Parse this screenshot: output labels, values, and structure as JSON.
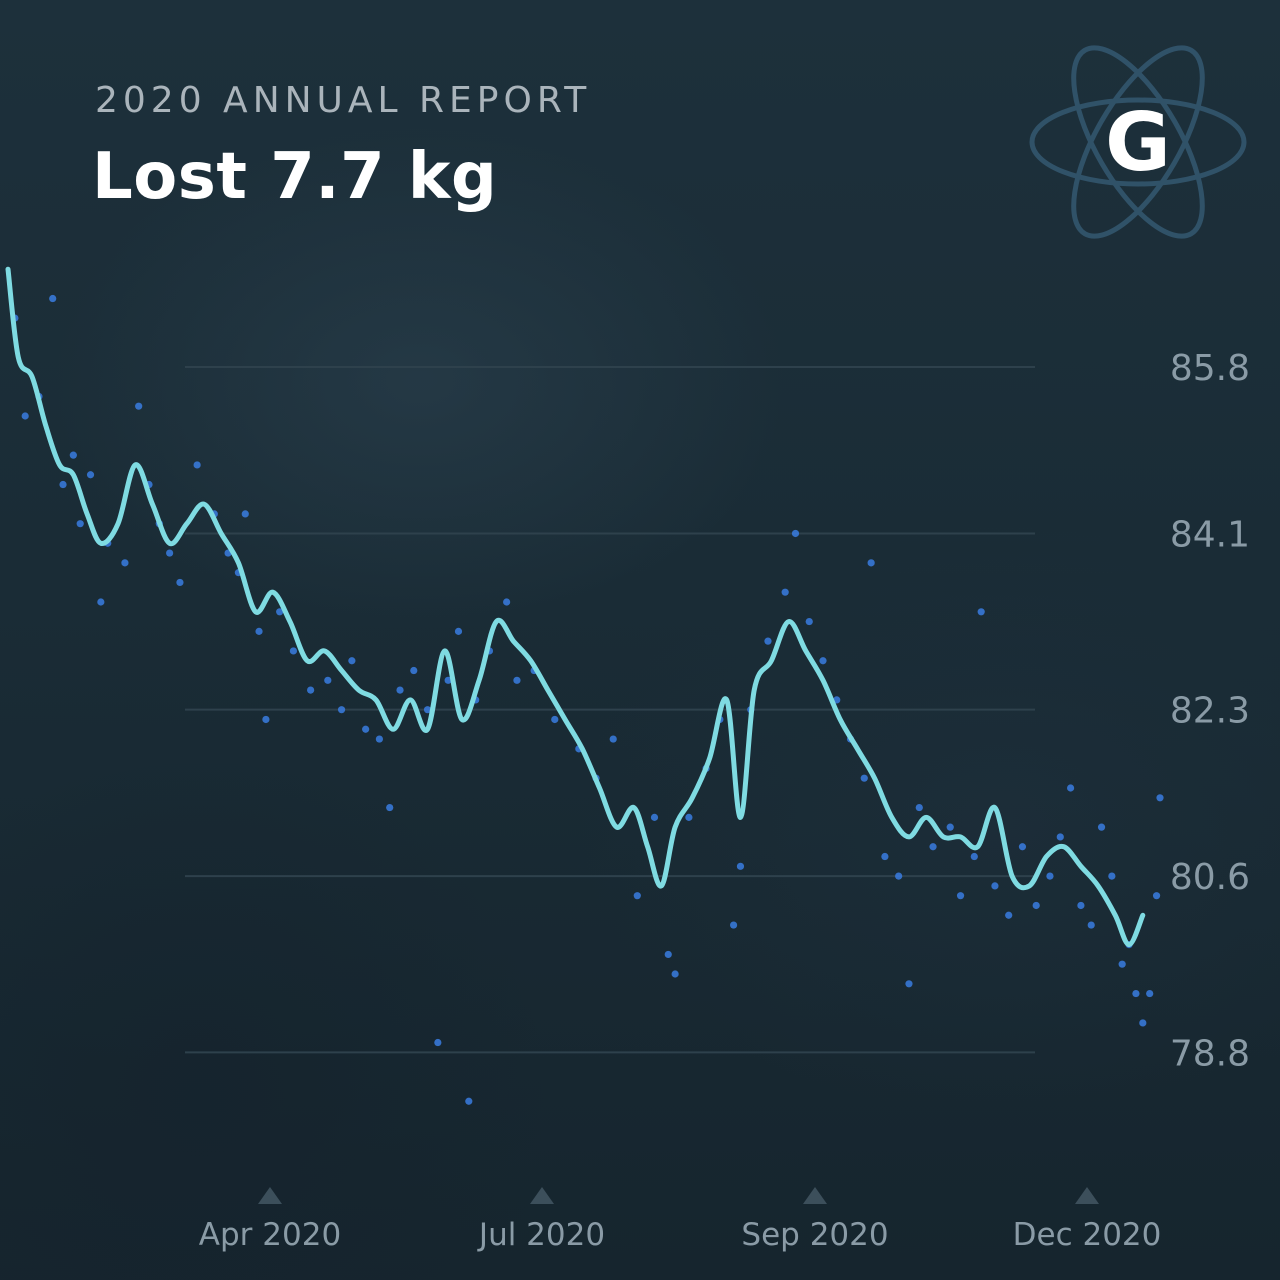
{
  "header": {
    "report_label": "2020 ANNUAL REPORT",
    "headline": "Lost 7.7 kg"
  },
  "logo": {
    "letter": "G",
    "icon": "atom-icon"
  },
  "colors": {
    "line": "#7fdbe2",
    "dots": "#3a7de0",
    "grid": "#2e414c",
    "tick_text": "#8a9ba6",
    "marker": "#3c4f5b"
  },
  "chart_data": {
    "type": "line",
    "y_axis": {
      "ticks": [
        "85.8",
        "84.1",
        "82.3",
        "80.6",
        "78.8"
      ],
      "ylim": [
        77.7,
        87.2
      ]
    },
    "x_axis": {
      "ticks": [
        "Apr 2020",
        "Jul 2020",
        "Sep 2020",
        "Dec 2020"
      ]
    },
    "grid": true,
    "series": [
      {
        "style": "line",
        "points": [
          [
            "2020-01-01",
            86.8
          ],
          [
            "2020-01-04",
            85.9
          ],
          [
            "2020-01-08",
            85.7
          ],
          [
            "2020-01-12",
            85.2
          ],
          [
            "2020-01-16",
            84.8
          ],
          [
            "2020-01-20",
            84.7
          ],
          [
            "2020-01-24",
            84.3
          ],
          [
            "2020-01-28",
            84.0
          ],
          [
            "2020-02-02",
            84.2
          ],
          [
            "2020-02-07",
            84.8
          ],
          [
            "2020-02-12",
            84.4
          ],
          [
            "2020-02-17",
            84.0
          ],
          [
            "2020-02-22",
            84.2
          ],
          [
            "2020-02-27",
            84.4
          ],
          [
            "2020-03-03",
            84.1
          ],
          [
            "2020-03-08",
            83.8
          ],
          [
            "2020-03-13",
            83.3
          ],
          [
            "2020-03-18",
            83.5
          ],
          [
            "2020-03-23",
            83.2
          ],
          [
            "2020-03-28",
            82.8
          ],
          [
            "2020-04-02",
            82.9
          ],
          [
            "2020-04-07",
            82.7
          ],
          [
            "2020-04-12",
            82.5
          ],
          [
            "2020-04-17",
            82.4
          ],
          [
            "2020-04-22",
            82.1
          ],
          [
            "2020-04-27",
            82.4
          ],
          [
            "2020-05-02",
            82.1
          ],
          [
            "2020-05-07",
            82.9
          ],
          [
            "2020-05-12",
            82.2
          ],
          [
            "2020-05-17",
            82.6
          ],
          [
            "2020-05-22",
            83.2
          ],
          [
            "2020-05-27",
            83.0
          ],
          [
            "2020-06-01",
            82.8
          ],
          [
            "2020-06-06",
            82.5
          ],
          [
            "2020-06-11",
            82.2
          ],
          [
            "2020-06-16",
            81.9
          ],
          [
            "2020-06-21",
            81.5
          ],
          [
            "2020-06-26",
            81.1
          ],
          [
            "2020-07-01",
            81.3
          ],
          [
            "2020-07-05",
            80.9
          ],
          [
            "2020-07-09",
            80.5
          ],
          [
            "2020-07-13",
            81.1
          ],
          [
            "2020-07-18",
            81.4
          ],
          [
            "2020-07-23",
            81.8
          ],
          [
            "2020-07-28",
            82.4
          ],
          [
            "2020-08-01",
            81.2
          ],
          [
            "2020-08-05",
            82.5
          ],
          [
            "2020-08-10",
            82.8
          ],
          [
            "2020-08-15",
            83.2
          ],
          [
            "2020-08-20",
            82.9
          ],
          [
            "2020-08-25",
            82.6
          ],
          [
            "2020-08-30",
            82.2
          ],
          [
            "2020-09-04",
            81.9
          ],
          [
            "2020-09-09",
            81.6
          ],
          [
            "2020-09-14",
            81.2
          ],
          [
            "2020-09-19",
            81.0
          ],
          [
            "2020-09-24",
            81.2
          ],
          [
            "2020-09-29",
            81.0
          ],
          [
            "2020-10-04",
            81.0
          ],
          [
            "2020-10-09",
            80.9
          ],
          [
            "2020-10-14",
            81.3
          ],
          [
            "2020-10-19",
            80.6
          ],
          [
            "2020-10-24",
            80.5
          ],
          [
            "2020-10-29",
            80.8
          ],
          [
            "2020-11-03",
            80.9
          ],
          [
            "2020-11-08",
            80.7
          ],
          [
            "2020-11-13",
            80.5
          ],
          [
            "2020-11-18",
            80.2
          ],
          [
            "2020-11-22",
            79.9
          ],
          [
            "2020-11-26",
            80.2
          ]
        ]
      },
      {
        "style": "scatter",
        "points": [
          [
            "2020-01-03",
            86.3
          ],
          [
            "2020-01-06",
            85.3
          ],
          [
            "2020-01-10",
            85.5
          ],
          [
            "2020-01-14",
            86.5
          ],
          [
            "2020-01-17",
            84.6
          ],
          [
            "2020-01-20",
            84.9
          ],
          [
            "2020-01-22",
            84.2
          ],
          [
            "2020-01-25",
            84.7
          ],
          [
            "2020-01-28",
            83.4
          ],
          [
            "2020-01-30",
            84.0
          ],
          [
            "2020-02-04",
            83.8
          ],
          [
            "2020-02-08",
            85.4
          ],
          [
            "2020-02-11",
            84.6
          ],
          [
            "2020-02-14",
            84.2
          ],
          [
            "2020-02-17",
            83.9
          ],
          [
            "2020-02-20",
            83.6
          ],
          [
            "2020-02-25",
            84.8
          ],
          [
            "2020-03-01",
            84.3
          ],
          [
            "2020-03-05",
            83.9
          ],
          [
            "2020-03-08",
            83.7
          ],
          [
            "2020-03-10",
            84.3
          ],
          [
            "2020-03-14",
            83.1
          ],
          [
            "2020-03-16",
            82.2
          ],
          [
            "2020-03-20",
            83.3
          ],
          [
            "2020-03-24",
            82.9
          ],
          [
            "2020-03-29",
            82.5
          ],
          [
            "2020-04-03",
            82.6
          ],
          [
            "2020-04-07",
            82.3
          ],
          [
            "2020-04-10",
            82.8
          ],
          [
            "2020-04-14",
            82.1
          ],
          [
            "2020-04-18",
            82.0
          ],
          [
            "2020-04-21",
            81.3
          ],
          [
            "2020-04-24",
            82.5
          ],
          [
            "2020-04-28",
            82.7
          ],
          [
            "2020-05-02",
            82.3
          ],
          [
            "2020-05-05",
            78.9
          ],
          [
            "2020-05-08",
            82.6
          ],
          [
            "2020-05-11",
            83.1
          ],
          [
            "2020-05-14",
            78.3
          ],
          [
            "2020-05-16",
            82.4
          ],
          [
            "2020-05-20",
            82.9
          ],
          [
            "2020-05-25",
            83.4
          ],
          [
            "2020-05-28",
            82.6
          ],
          [
            "2020-06-02",
            82.7
          ],
          [
            "2020-06-08",
            82.2
          ],
          [
            "2020-06-15",
            81.9
          ],
          [
            "2020-06-20",
            81.6
          ],
          [
            "2020-06-25",
            82.0
          ],
          [
            "2020-07-02",
            80.4
          ],
          [
            "2020-07-07",
            81.2
          ],
          [
            "2020-07-11",
            79.8
          ],
          [
            "2020-07-13",
            79.6
          ],
          [
            "2020-07-17",
            81.2
          ],
          [
            "2020-07-22",
            81.7
          ],
          [
            "2020-07-26",
            82.2
          ],
          [
            "2020-07-30",
            80.1
          ],
          [
            "2020-08-01",
            80.7
          ],
          [
            "2020-08-04",
            82.3
          ],
          [
            "2020-08-09",
            83.0
          ],
          [
            "2020-08-14",
            83.5
          ],
          [
            "2020-08-17",
            84.1
          ],
          [
            "2020-08-21",
            83.2
          ],
          [
            "2020-08-25",
            82.8
          ],
          [
            "2020-08-29",
            82.4
          ],
          [
            "2020-09-02",
            82.0
          ],
          [
            "2020-09-06",
            81.6
          ],
          [
            "2020-09-08",
            83.8
          ],
          [
            "2020-09-12",
            80.8
          ],
          [
            "2020-09-16",
            80.6
          ],
          [
            "2020-09-19",
            79.5
          ],
          [
            "2020-09-22",
            81.3
          ],
          [
            "2020-09-26",
            80.9
          ],
          [
            "2020-10-01",
            81.1
          ],
          [
            "2020-10-04",
            80.4
          ],
          [
            "2020-10-08",
            80.8
          ],
          [
            "2020-10-10",
            83.3
          ],
          [
            "2020-10-14",
            80.5
          ],
          [
            "2020-10-18",
            80.2
          ],
          [
            "2020-10-22",
            80.9
          ],
          [
            "2020-10-26",
            80.3
          ],
          [
            "2020-10-30",
            80.6
          ],
          [
            "2020-11-02",
            81.0
          ],
          [
            "2020-11-05",
            81.5
          ],
          [
            "2020-11-08",
            80.3
          ],
          [
            "2020-11-11",
            80.1
          ],
          [
            "2020-11-14",
            81.1
          ],
          [
            "2020-11-17",
            80.6
          ],
          [
            "2020-11-20",
            79.7
          ],
          [
            "2020-11-22",
            79.9
          ],
          [
            "2020-11-24",
            79.4
          ],
          [
            "2020-11-26",
            79.1
          ],
          [
            "2020-11-28",
            79.4
          ],
          [
            "2020-11-30",
            80.4
          ],
          [
            "2020-12-01",
            81.4
          ]
        ]
      }
    ]
  }
}
